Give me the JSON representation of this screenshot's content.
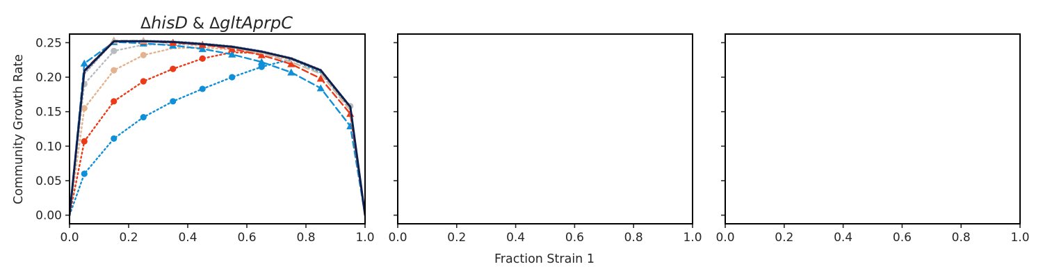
{
  "figure": {
    "xlabel": "Fraction Strain 1",
    "ylabel": "Community Growth Rate"
  },
  "chart_data": [
    {
      "type": "line",
      "title": "ΔhisD & ΔgltAprpC",
      "title_parts": [
        {
          "text": "Δ",
          "italic": false
        },
        {
          "text": "hisD",
          "italic": true
        },
        {
          "text": " & ",
          "italic": false
        },
        {
          "text": "Δ",
          "italic": false
        },
        {
          "text": "gltAprpC",
          "italic": true
        }
      ],
      "xlabel": "",
      "ylabel": "Community Growth Rate",
      "xlim": [
        0.0,
        1.0
      ],
      "ylim": [
        -0.0125,
        0.2625
      ],
      "xticks": [
        "0.0",
        "0.2",
        "0.4",
        "0.6",
        "0.8",
        "1.0"
      ],
      "yticks": [
        "0.00",
        "0.05",
        "0.10",
        "0.15",
        "0.20",
        "0.25"
      ],
      "grid": false,
      "series": [
        {
          "color": "#0f8fd8",
          "dash": "2 4",
          "marker": "circle",
          "markers_at": [
            0.05,
            0.15,
            0.25,
            0.35,
            0.45,
            0.55,
            0.65
          ],
          "x": [
            0.0,
            0.05,
            0.15,
            0.25,
            0.35,
            0.45,
            0.55,
            0.65,
            0.75,
            0.85,
            0.95,
            1.0
          ],
          "y": [
            0.0,
            0.06,
            0.111,
            0.142,
            0.165,
            0.183,
            0.2,
            0.215,
            0.226,
            0.207,
            0.155,
            0.0
          ]
        },
        {
          "color": "#ea3a17",
          "dash": "2 4",
          "marker": "circle",
          "markers_at": [
            0.05,
            0.15,
            0.25,
            0.35,
            0.45
          ],
          "x": [
            0.0,
            0.05,
            0.15,
            0.25,
            0.35,
            0.45,
            0.55,
            0.65,
            0.75,
            0.85,
            0.95,
            1.0
          ],
          "y": [
            0.0,
            0.107,
            0.165,
            0.194,
            0.212,
            0.227,
            0.236,
            0.235,
            0.226,
            0.209,
            0.156,
            0.0
          ]
        },
        {
          "color": "#e3b38f",
          "dash": "2 4",
          "marker": "circle",
          "markers_at": [
            0.05,
            0.15,
            0.25
          ],
          "x": [
            0.0,
            0.05,
            0.15,
            0.25,
            0.35,
            0.45,
            0.55,
            0.65,
            0.75,
            0.85,
            0.95,
            1.0
          ],
          "y": [
            0.0,
            0.155,
            0.21,
            0.232,
            0.242,
            0.243,
            0.24,
            0.235,
            0.226,
            0.209,
            0.157,
            0.0
          ]
        },
        {
          "color": "#b9bcbf",
          "dash": "2 4",
          "marker": "circle",
          "markers_at": [
            0.05,
            0.15,
            0.95
          ],
          "x": [
            0.0,
            0.05,
            0.15,
            0.25,
            0.35,
            0.45,
            0.55,
            0.65,
            0.75,
            0.85,
            0.95,
            1.0
          ],
          "y": [
            0.0,
            0.19,
            0.238,
            0.247,
            0.248,
            0.246,
            0.243,
            0.237,
            0.227,
            0.21,
            0.158,
            0.0
          ]
        },
        {
          "color": "#0f8fd8",
          "dash": "9 5",
          "marker": "triangle",
          "markers_at": [
            0.05,
            0.15,
            0.25,
            0.35,
            0.45,
            0.55,
            0.65,
            0.75,
            0.85,
            0.95
          ],
          "x": [
            0.0,
            0.05,
            0.15,
            0.25,
            0.35,
            0.45,
            0.55,
            0.65,
            0.75,
            0.85,
            0.95,
            1.0
          ],
          "y": [
            0.0,
            0.22,
            0.251,
            0.249,
            0.246,
            0.241,
            0.233,
            0.222,
            0.207,
            0.184,
            0.129,
            0.0
          ]
        },
        {
          "color": "#ea3a17",
          "dash": "9 5",
          "marker": "triangle",
          "markers_at": [
            0.15,
            0.25,
            0.35,
            0.45,
            0.55,
            0.65,
            0.75,
            0.85,
            0.95
          ],
          "x": [
            0.0,
            0.05,
            0.15,
            0.25,
            0.35,
            0.45,
            0.55,
            0.65,
            0.75,
            0.85,
            0.95,
            1.0
          ],
          "y": [
            0.0,
            0.21,
            0.253,
            0.252,
            0.25,
            0.247,
            0.241,
            0.232,
            0.219,
            0.198,
            0.147,
            0.0
          ]
        },
        {
          "color": "#c8b6a4",
          "dash": "9 5",
          "marker": "triangle",
          "markers_at": [
            0.15,
            0.25
          ],
          "x": [
            0.0,
            0.05,
            0.15,
            0.25,
            0.35,
            0.45,
            0.55,
            0.65,
            0.75,
            0.85,
            0.95,
            1.0
          ],
          "y": [
            0.0,
            0.209,
            0.253,
            0.253,
            0.251,
            0.248,
            0.243,
            0.235,
            0.222,
            0.205,
            0.152,
            0.0
          ]
        },
        {
          "color": "#9aa2ad",
          "dash": "2 3",
          "marker": "none",
          "markers_at": [],
          "x": [
            0.0,
            0.05,
            0.15,
            0.25,
            0.35,
            0.45,
            0.55,
            0.65,
            0.75,
            0.85,
            0.95,
            1.0
          ],
          "y": [
            0.0,
            0.205,
            0.252,
            0.253,
            0.252,
            0.249,
            0.245,
            0.238,
            0.228,
            0.211,
            0.157,
            0.0
          ]
        },
        {
          "color": "#0d1f4d",
          "dash": "",
          "marker": "none",
          "markers_at": [],
          "x": [
            0.0,
            0.05,
            0.15,
            0.25,
            0.35,
            0.45,
            0.55,
            0.65,
            0.75,
            0.85,
            0.95,
            1.0
          ],
          "y": [
            0.0,
            0.209,
            0.252,
            0.252,
            0.251,
            0.248,
            0.244,
            0.237,
            0.227,
            0.21,
            0.157,
            0.0
          ]
        }
      ]
    },
    {
      "type": "line",
      "title": "",
      "xlim": [
        0.0,
        1.0
      ],
      "ylim": [
        -0.0125,
        0.2625
      ],
      "xticks": [
        "0.0",
        "0.2",
        "0.4",
        "0.6",
        "0.8",
        "1.0"
      ],
      "yticks": [],
      "grid": false,
      "series": []
    },
    {
      "type": "line",
      "title": "",
      "xlim": [
        0.0,
        1.0
      ],
      "ylim": [
        -0.0125,
        0.2625
      ],
      "xticks": [
        "0.0",
        "0.2",
        "0.4",
        "0.6",
        "0.8",
        "1.0"
      ],
      "yticks": [],
      "grid": false,
      "series": []
    }
  ]
}
